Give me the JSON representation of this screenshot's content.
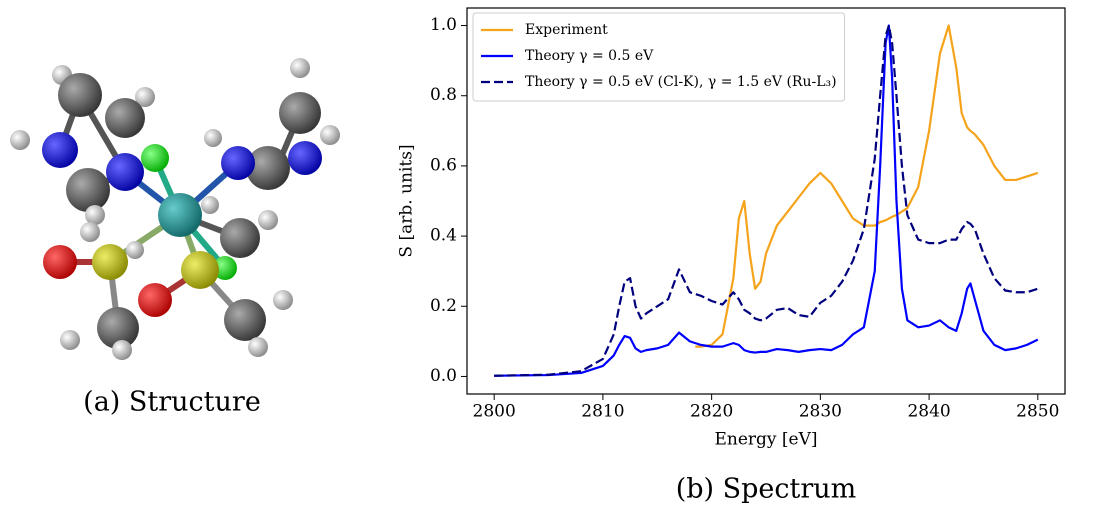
{
  "caption_a": "(a) Structure",
  "chart_data": {
    "type": "line",
    "caption": "(b) Spectrum",
    "xlabel": "Energy [eV]",
    "ylabel": "S [arb. units]",
    "xlim": [
      2797.5,
      2852.5
    ],
    "ylim": [
      -0.05,
      1.05
    ],
    "xticks": [
      2800,
      2810,
      2820,
      2830,
      2840,
      2850
    ],
    "yticks": [
      {
        "value": 0,
        "label": "0.0"
      },
      {
        "value": 0.2,
        "label": "0.2"
      },
      {
        "value": 0.4,
        "label": "0.4"
      },
      {
        "value": 0.6,
        "label": "0.6"
      },
      {
        "value": 0.8,
        "label": "0.8"
      },
      {
        "value": 1.0,
        "label": "1.0"
      }
    ],
    "grid": false,
    "legend": "upper left",
    "x": [
      2800,
      2805,
      2808,
      2810,
      2811,
      2811.5,
      2812,
      2812.5,
      2813,
      2813.5,
      2814,
      2815,
      2816,
      2817,
      2818,
      2818.5,
      2819,
      2820,
      2821,
      2822,
      2822.5,
      2823,
      2823.5,
      2824,
      2824.5,
      2825,
      2826,
      2827,
      2828,
      2829,
      2830,
      2831,
      2832,
      2833,
      2834,
      2835,
      2835.5,
      2836,
      2836.3,
      2836.6,
      2837,
      2837.5,
      2838,
      2839,
      2840,
      2841,
      2841.8,
      2842.5,
      2843,
      2843.5,
      2843.8,
      2844.2,
      2845,
      2846,
      2847,
      2848,
      2849,
      2850
    ],
    "series": [
      {
        "name": "Experiment",
        "color": "#f5a31a",
        "linestyle": "solid",
        "values": [
          null,
          null,
          null,
          null,
          null,
          null,
          null,
          null,
          null,
          null,
          null,
          null,
          null,
          null,
          null,
          0.085,
          0.085,
          0.09,
          0.12,
          0.28,
          0.45,
          0.5,
          0.35,
          0.25,
          0.27,
          0.35,
          0.43,
          0.47,
          0.51,
          0.55,
          0.58,
          0.55,
          0.5,
          0.45,
          0.43,
          0.43,
          0.44,
          0.445,
          0.45,
          0.455,
          0.46,
          0.47,
          0.48,
          0.54,
          0.7,
          0.92,
          1.0,
          0.88,
          0.75,
          0.71,
          0.7,
          0.69,
          0.66,
          0.6,
          0.56,
          0.56,
          0.57,
          0.58
        ]
      },
      {
        "name": "Theory γ = 0.5 eV",
        "color": "#0000ff",
        "linestyle": "solid",
        "values": [
          0.002,
          0.004,
          0.01,
          0.03,
          0.06,
          0.09,
          0.115,
          0.11,
          0.08,
          0.07,
          0.075,
          0.08,
          0.09,
          0.125,
          0.1,
          0.095,
          0.09,
          0.085,
          0.085,
          0.095,
          0.09,
          0.075,
          0.07,
          0.068,
          0.07,
          0.07,
          0.078,
          0.075,
          0.07,
          0.075,
          0.078,
          0.075,
          0.09,
          0.12,
          0.14,
          0.3,
          0.6,
          0.95,
          1.0,
          0.85,
          0.5,
          0.25,
          0.16,
          0.14,
          0.145,
          0.16,
          0.14,
          0.13,
          0.18,
          0.25,
          0.265,
          0.22,
          0.13,
          0.09,
          0.075,
          0.08,
          0.09,
          0.105
        ]
      },
      {
        "name": "Theory γ = 0.5 eV (Cl-K), γ = 1.5 eV (Ru-L₃)",
        "color": "#00007f",
        "linestyle": "dashed",
        "values": [
          0.002,
          0.005,
          0.015,
          0.05,
          0.12,
          0.2,
          0.27,
          0.28,
          0.2,
          0.165,
          0.18,
          0.2,
          0.22,
          0.305,
          0.24,
          0.235,
          0.23,
          0.215,
          0.205,
          0.24,
          0.22,
          0.19,
          0.18,
          0.165,
          0.16,
          0.165,
          0.19,
          0.195,
          0.175,
          0.17,
          0.21,
          0.23,
          0.27,
          0.33,
          0.42,
          0.62,
          0.8,
          0.97,
          1.0,
          0.95,
          0.8,
          0.6,
          0.46,
          0.39,
          0.38,
          0.38,
          0.39,
          0.39,
          0.42,
          0.44,
          0.435,
          0.42,
          0.35,
          0.28,
          0.245,
          0.24,
          0.24,
          0.25
        ]
      }
    ]
  }
}
